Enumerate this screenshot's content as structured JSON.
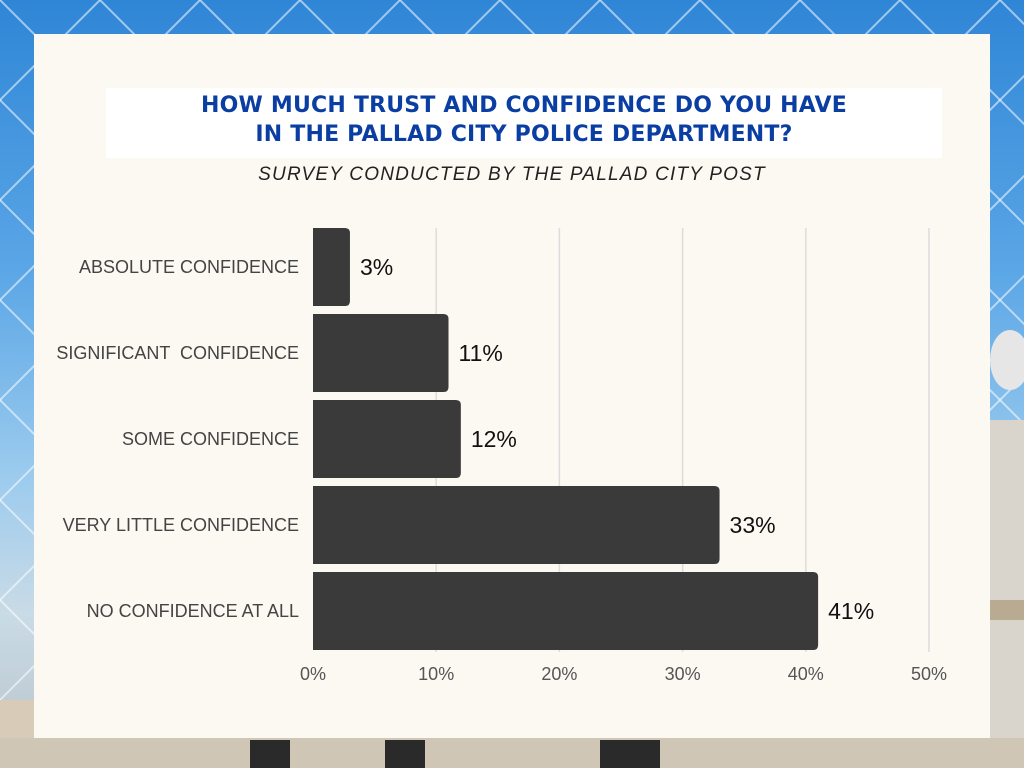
{
  "title": {
    "line1": "HOW MUCH TRUST AND CONFIDENCE DO YOU HAVE",
    "line2": "IN THE PALLAD CITY POLICE DEPARTMENT?"
  },
  "subtitle": "SURVEY CONDUCTED BY THE PALLAD CITY POST",
  "colors": {
    "bar": "#3a3a3a",
    "title": "#0a3ea3",
    "card": "#fcf9f3",
    "grid": "#dcdcdc"
  },
  "chart_data": {
    "type": "bar",
    "orientation": "horizontal",
    "title": "HOW MUCH TRUST AND CONFIDENCE DO YOU HAVE IN THE PALLAD CITY POLICE DEPARTMENT?",
    "subtitle": "SURVEY CONDUCTED BY THE PALLAD CITY POST",
    "categories": [
      "ABSOLUTE CONFIDENCE",
      "SIGNIFICANT  CONFIDENCE",
      "SOME CONFIDENCE",
      "VERY LITTLE CONFIDENCE",
      "NO CONFIDENCE AT ALL"
    ],
    "values": [
      3,
      11,
      12,
      33,
      41
    ],
    "data_labels": [
      "3%",
      "11%",
      "12%",
      "33%",
      "41%"
    ],
    "xlim": [
      0,
      50
    ],
    "x_ticks": [
      0,
      10,
      20,
      30,
      40,
      50
    ],
    "x_tick_labels": [
      "0%",
      "10%",
      "20%",
      "30%",
      "40%",
      "50%"
    ],
    "grid": true,
    "legend": "none"
  }
}
